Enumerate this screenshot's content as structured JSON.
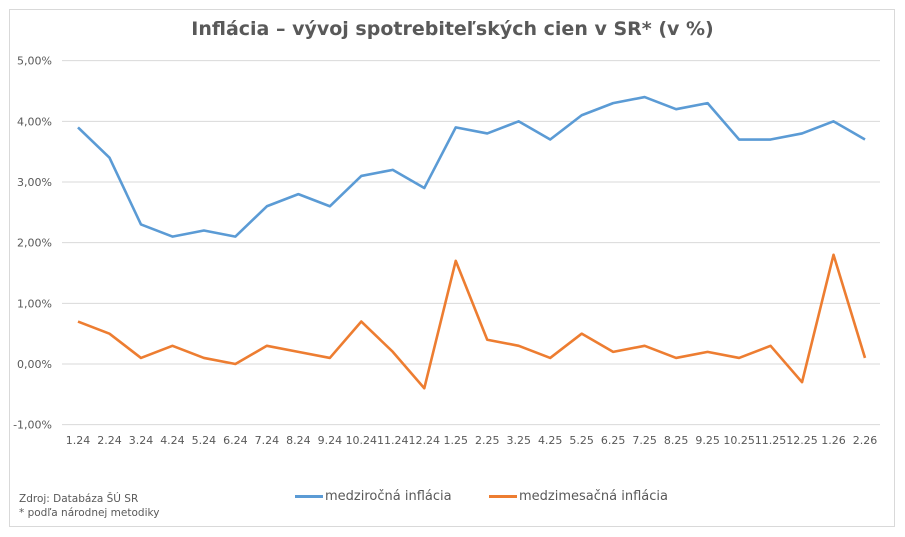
{
  "chart_data": {
    "type": "line",
    "title": "Inflácia –  vývoj spotrebiteľských cien v SR* (v %)",
    "categories": [
      "1.24",
      "2.24",
      "3.24",
      "4.24",
      "5.24",
      "6.24",
      "7.24",
      "8.24",
      "9.24",
      "10.24",
      "11.24",
      "12.24",
      "1.25",
      "2.25",
      "3.25",
      "4.25",
      "5.25",
      "6.25",
      "7.25",
      "8.25",
      "9.25",
      "10.25",
      "11.25",
      "12.25",
      "1.26",
      "2.26"
    ],
    "series": [
      {
        "name": "medziročná inflácia",
        "color": "#5b9bd5",
        "values": [
          3.9,
          3.4,
          2.3,
          2.1,
          2.2,
          2.1,
          2.6,
          2.8,
          2.6,
          3.1,
          3.2,
          2.9,
          3.9,
          3.8,
          4.0,
          3.7,
          4.1,
          4.3,
          4.4,
          4.2,
          4.3,
          3.7,
          3.7,
          3.8,
          4.0,
          3.7
        ]
      },
      {
        "name": "medzimesačná inflácia",
        "color": "#ed7d31",
        "values": [
          0.7,
          0.5,
          0.1,
          0.3,
          0.1,
          0.0,
          0.3,
          0.2,
          0.1,
          0.7,
          0.2,
          -0.4,
          1.7,
          0.4,
          0.3,
          0.1,
          0.5,
          0.2,
          0.3,
          0.1,
          0.2,
          0.1,
          0.3,
          -0.3,
          1.8,
          0.1
        ]
      }
    ],
    "ylim": [
      -1,
      5
    ],
    "yticks": [
      5,
      4,
      3,
      2,
      1,
      0,
      -1
    ],
    "ytick_labels": [
      "5,00%",
      "4,00%",
      "3,00%",
      "2,00%",
      "1,00%",
      "0,00%",
      "-1,00%"
    ],
    "grid": true,
    "legend_position": "bottom"
  },
  "footer": {
    "source": "Zdroj: Databáza ŠÚ SR",
    "note": "* podľa národnej metodiky"
  }
}
